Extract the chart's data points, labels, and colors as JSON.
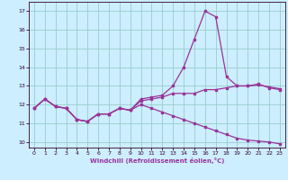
{
  "xlabel": "Windchill (Refroidissement éolien,°C)",
  "bg_color": "#cceeff",
  "line_color": "#993399",
  "grid_color": "#99cccc",
  "xlim": [
    -0.5,
    23.5
  ],
  "ylim": [
    9.7,
    17.5
  ],
  "yticks": [
    10,
    11,
    12,
    13,
    14,
    15,
    16,
    17
  ],
  "xticks": [
    0,
    1,
    2,
    3,
    4,
    5,
    6,
    7,
    8,
    9,
    10,
    11,
    12,
    13,
    14,
    15,
    16,
    17,
    18,
    19,
    20,
    21,
    22,
    23
  ],
  "series1_x": [
    0,
    1,
    2,
    3,
    4,
    5,
    6,
    7,
    8,
    9,
    10,
    11,
    12,
    13,
    14,
    15,
    16,
    17,
    18,
    19,
    20,
    21,
    22,
    23
  ],
  "series1_y": [
    11.8,
    12.3,
    11.9,
    11.8,
    11.2,
    11.1,
    11.5,
    11.5,
    11.8,
    11.7,
    12.3,
    12.4,
    12.5,
    13.0,
    14.0,
    15.5,
    17.0,
    16.7,
    13.5,
    13.0,
    13.0,
    13.1,
    12.9,
    12.8
  ],
  "series2_x": [
    0,
    1,
    2,
    3,
    4,
    5,
    6,
    7,
    8,
    9,
    10,
    11,
    12,
    13,
    14,
    15,
    16,
    17,
    18,
    19,
    20,
    21,
    22,
    23
  ],
  "series2_y": [
    11.8,
    12.3,
    11.9,
    11.8,
    11.2,
    11.1,
    11.5,
    11.5,
    11.8,
    11.7,
    12.2,
    12.3,
    12.4,
    12.6,
    12.6,
    12.6,
    12.8,
    12.8,
    12.9,
    13.0,
    13.0,
    13.05,
    12.95,
    12.85
  ],
  "series3_x": [
    0,
    1,
    2,
    3,
    4,
    5,
    6,
    7,
    8,
    9,
    10,
    11,
    12,
    13,
    14,
    15,
    16,
    17,
    18,
    19,
    20,
    21,
    22,
    23
  ],
  "series3_y": [
    11.8,
    12.3,
    11.9,
    11.8,
    11.2,
    11.1,
    11.5,
    11.5,
    11.8,
    11.7,
    12.0,
    11.8,
    11.6,
    11.4,
    11.2,
    11.0,
    10.8,
    10.6,
    10.4,
    10.2,
    10.1,
    10.05,
    10.0,
    9.9
  ]
}
